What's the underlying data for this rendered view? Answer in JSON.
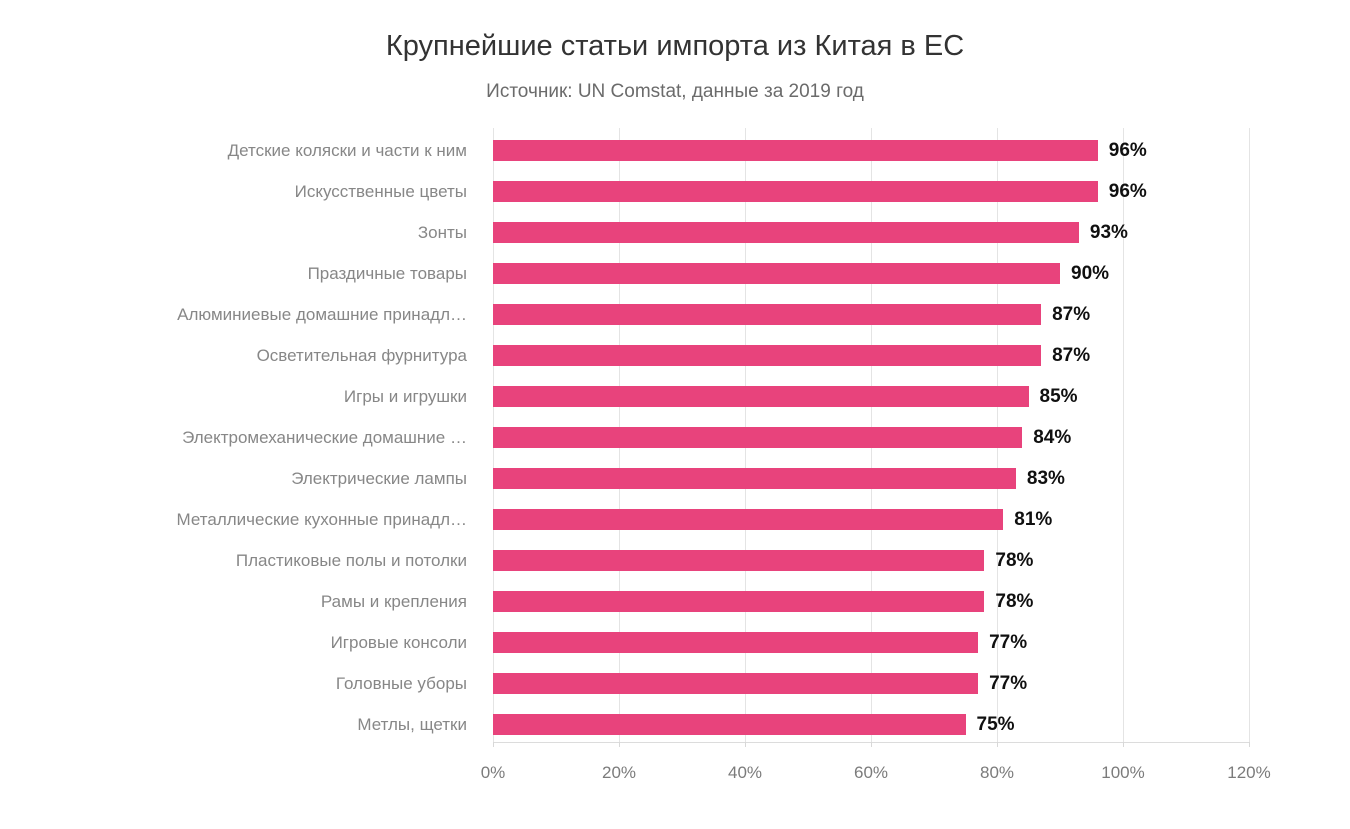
{
  "chart_data": {
    "type": "bar",
    "orientation": "horizontal",
    "title": "Крупнейшие статьи импорта из Китая в ЕС",
    "subtitle": "Источник: UN Comstat, данные за 2019 год",
    "categories": [
      "Детские коляски и части к ним",
      "Искусственные цветы",
      "Зонты",
      "Праздичные товары",
      "Алюминиевые домашние принадл…",
      "Осветительная фурнитура",
      "Игры и игрушки",
      "Электромеханические домашние …",
      "Электрические лампы",
      "Металлические кухонные принадл…",
      "Пластиковые полы и потолки",
      "Рамы и крепления",
      "Игровые консоли",
      "Головные уборы",
      "Метлы, щетки"
    ],
    "values": [
      96,
      96,
      93,
      90,
      87,
      87,
      85,
      84,
      83,
      81,
      78,
      78,
      77,
      77,
      75
    ],
    "value_suffix": "%",
    "xlabel": "",
    "ylabel": "",
    "xlim": [
      0,
      120
    ],
    "x_tick_step": 20,
    "x_ticks": [
      "0%",
      "20%",
      "40%",
      "60%",
      "80%",
      "100%",
      "120%"
    ],
    "grid": true,
    "legend": "none",
    "colors": {
      "bar": "#e8437c",
      "value_label": "#101010",
      "category_label": "#878787",
      "tick_label": "#7b7b7b",
      "gridline": "#e4e4e4",
      "title": "#333333",
      "subtitle": "#6b6b6b",
      "background": "#ffffff"
    }
  }
}
